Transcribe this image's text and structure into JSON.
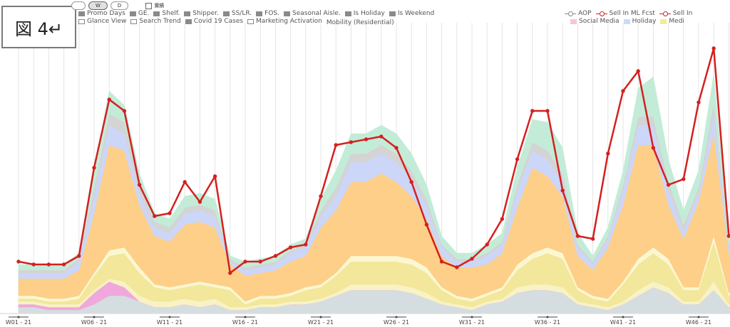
{
  "figure_label": "図 4↵",
  "toggles": {
    "items": [
      "",
      "W",
      "D"
    ],
    "active": "W",
    "checkbox_label": "實績"
  },
  "legend": {
    "row1": [
      {
        "name": "Promo Days",
        "icon": "square",
        "color": "#8a8a8a"
      },
      {
        "name": "GE.",
        "icon": "square",
        "color": "#8a8a8a"
      },
      {
        "name": "Shelf.",
        "icon": "square",
        "color": "#8a8a8a"
      },
      {
        "name": "Shipper.",
        "icon": "square",
        "color": "#8a8a8a"
      },
      {
        "name": "SS/LR.",
        "icon": "square",
        "color": "#8a8a8a"
      },
      {
        "name": "FOS.",
        "icon": "square",
        "color": "#8a8a8a"
      },
      {
        "name": "Seasonal Aisle.",
        "icon": "square",
        "color": "#8a8a8a"
      },
      {
        "name": "Is Holiday",
        "icon": "square",
        "color": "#8a8a8a"
      },
      {
        "name": "Is Weekend",
        "icon": "square",
        "color": "#8a8a8a"
      }
    ],
    "row2": [
      {
        "name": "Glance View",
        "icon": "outline",
        "color": "#888888"
      },
      {
        "name": "Search Trend",
        "icon": "outline",
        "color": "#888888"
      },
      {
        "name": "Covid 19 Cases",
        "icon": "square",
        "color": "#8a8a8a"
      },
      {
        "name": "Marketing Activation",
        "icon": "outline",
        "color": "#888888"
      },
      {
        "name": "Mobility (Residential)",
        "icon": "none",
        "color": "#888888"
      }
    ],
    "right_row1": [
      {
        "name": "AOP",
        "icon": "line",
        "color": "#888888"
      },
      {
        "name": "Sell In ML Fcst",
        "icon": "line",
        "color": "#d42020"
      },
      {
        "name": "Sell In",
        "icon": "line",
        "color": "#d42020"
      }
    ],
    "right_row2": [
      {
        "name": "Social Media",
        "icon": "square",
        "color": "#f6c6de"
      },
      {
        "name": "Holiday",
        "icon": "square",
        "color": "#c9dcf5"
      },
      {
        "name": "Medi",
        "icon": "square",
        "color": "#f2eb9c"
      }
    ]
  },
  "chart_data": {
    "type": "area",
    "stacked": true,
    "x_tick_labels": [
      "W01 - 21",
      "W06 - 21",
      "W11 - 21",
      "W16 - 21",
      "W21 - 21",
      "W26 - 21",
      "W31 - 21",
      "W36 - 21",
      "W41 - 21",
      "W46 - 21"
    ],
    "x": [
      1,
      2,
      3,
      4,
      5,
      6,
      7,
      8,
      9,
      10,
      11,
      12,
      13,
      14,
      15,
      16,
      17,
      18,
      19,
      20,
      21,
      22,
      23,
      24,
      25,
      26,
      27,
      28,
      29,
      30,
      31,
      32,
      33,
      34,
      35,
      36,
      37,
      38,
      39,
      40,
      41,
      42,
      43,
      44,
      45,
      46,
      47,
      48,
      49
    ],
    "ylim": [
      0,
      100
    ],
    "grid": {
      "vertical": true,
      "horizontal": false
    },
    "series": [
      {
        "color": "#d5dde0",
        "values": [
          2,
          2,
          1,
          1,
          1,
          3,
          6,
          6,
          4,
          2,
          2,
          3,
          2,
          3,
          1,
          1,
          2,
          2,
          3,
          3,
          4,
          6,
          8,
          8,
          8,
          8,
          7,
          5,
          3,
          2,
          1,
          3,
          4,
          7,
          8,
          8,
          7,
          3,
          2,
          1,
          3,
          6,
          9,
          7,
          3,
          3,
          8,
          2,
          2
        ]
      },
      {
        "color": "#f0a8dc",
        "values": [
          1,
          1,
          1,
          1,
          1,
          4,
          5,
          3,
          0,
          0,
          0,
          0,
          0,
          0,
          0,
          0,
          0,
          0,
          0,
          0,
          0,
          0,
          0,
          0,
          0,
          0,
          0,
          0,
          0,
          0,
          0,
          0,
          0,
          0,
          0,
          0,
          0,
          0,
          0,
          0,
          0,
          0,
          0,
          0,
          0,
          0,
          0,
          0,
          0
        ]
      },
      {
        "color": "#f8f2c4",
        "values": [
          1,
          1,
          1,
          1,
          1,
          1,
          1,
          2,
          2,
          2,
          2,
          2,
          2,
          2,
          1,
          1,
          1,
          1,
          1,
          1,
          1,
          1,
          2,
          2,
          2,
          2,
          2,
          2,
          1,
          1,
          1,
          1,
          1,
          2,
          2,
          2,
          2,
          1,
          1,
          1,
          1,
          2,
          2,
          2,
          1,
          1,
          3,
          1,
          1
        ]
      },
      {
        "color": "#f2e79a",
        "values": [
          1,
          1,
          1,
          1,
          2,
          5,
          8,
          10,
          8,
          5,
          4,
          4,
          6,
          4,
          6,
          1,
          2,
          2,
          2,
          4,
          4,
          6,
          8,
          8,
          8,
          8,
          8,
          7,
          4,
          2,
          2,
          2,
          3,
          6,
          9,
          11,
          10,
          4,
          2,
          2,
          6,
          9,
          10,
          8,
          4,
          4,
          14,
          3,
          6
        ]
      },
      {
        "color": "#fbf7d2",
        "values": [
          1,
          1,
          1,
          1,
          1,
          1,
          2,
          2,
          2,
          1,
          1,
          1,
          1,
          1,
          1,
          1,
          1,
          1,
          1,
          1,
          1,
          1,
          2,
          2,
          2,
          2,
          2,
          2,
          1,
          1,
          1,
          1,
          1,
          2,
          2,
          2,
          2,
          1,
          1,
          1,
          1,
          2,
          2,
          2,
          1,
          1,
          2,
          1,
          1
        ]
      },
      {
        "color": "#fdcf88",
        "values": [
          6,
          6,
          7,
          7,
          9,
          21,
          37,
          34,
          22,
          17,
          16,
          21,
          21,
          20,
          8,
          9,
          8,
          9,
          11,
          11,
          20,
          22,
          26,
          26,
          29,
          26,
          22,
          17,
          11,
          10,
          11,
          10,
          12,
          20,
          30,
          25,
          20,
          11,
          9,
          18,
          27,
          40,
          36,
          19,
          17,
          30,
          36,
          14,
          12
        ]
      },
      {
        "color": "#ccd6f8",
        "values": [
          2,
          2,
          2,
          2,
          3,
          6,
          7,
          6,
          4,
          3,
          3,
          4,
          4,
          4,
          1,
          2,
          2,
          2,
          3,
          3,
          4,
          5,
          7,
          7,
          7,
          7,
          6,
          5,
          3,
          2,
          2,
          3,
          3,
          6,
          6,
          6,
          5,
          3,
          2,
          3,
          5,
          7,
          7,
          5,
          3,
          3,
          7,
          2,
          3
        ]
      },
      {
        "color": "#d4d4d4",
        "values": [
          1,
          1,
          1,
          1,
          1,
          3,
          4,
          4,
          3,
          2,
          2,
          2,
          2,
          2,
          1,
          1,
          1,
          1,
          1,
          1,
          2,
          3,
          3,
          3,
          3,
          3,
          3,
          2,
          1,
          1,
          1,
          1,
          1,
          2,
          3,
          3,
          3,
          1,
          1,
          1,
          2,
          3,
          3,
          3,
          2,
          2,
          4,
          1,
          1
        ]
      },
      {
        "color": "#c3ecd8",
        "values": [
          2,
          2,
          2,
          2,
          2,
          6,
          8,
          6,
          4,
          3,
          3,
          4,
          4,
          4,
          1,
          2,
          2,
          2,
          2,
          2,
          4,
          6,
          7,
          7,
          7,
          7,
          6,
          5,
          3,
          2,
          2,
          3,
          3,
          6,
          8,
          10,
          9,
          4,
          2,
          3,
          5,
          10,
          14,
          8,
          5,
          6,
          10,
          2,
          3
        ]
      }
    ],
    "line_series": [
      {
        "name": "Sell In",
        "color": "#d42020",
        "values": [
          18,
          17,
          17,
          17,
          20,
          51,
          75,
          71,
          45,
          34,
          35,
          46,
          39,
          48,
          14,
          18,
          18,
          20,
          23,
          24,
          41,
          59,
          60,
          61,
          62,
          58,
          46,
          31,
          18,
          16,
          19,
          24,
          33,
          54,
          71,
          71,
          43,
          27,
          26,
          56,
          78,
          85,
          58,
          45,
          47,
          74,
          93,
          27,
          31
        ]
      }
    ]
  }
}
